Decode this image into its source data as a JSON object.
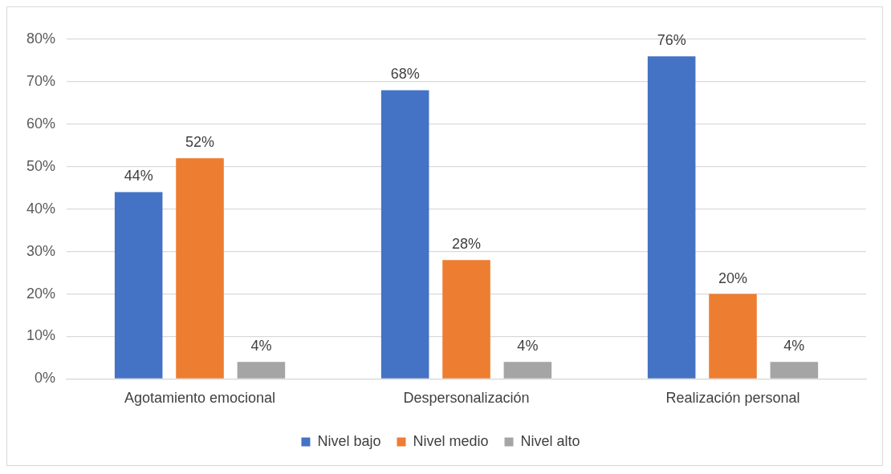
{
  "chart_data": {
    "type": "bar",
    "categories": [
      "Agotamiento emocional",
      "Despersonalización",
      "Realización personal"
    ],
    "series": [
      {
        "name": "Nivel bajo",
        "color": "#4472c4",
        "values": [
          44,
          68,
          76
        ],
        "value_labels": [
          "44%",
          "68%",
          "76%"
        ]
      },
      {
        "name": "Nivel medio",
        "color": "#ed7d31",
        "values": [
          52,
          28,
          20
        ],
        "value_labels": [
          "52%",
          "28%",
          "20%"
        ]
      },
      {
        "name": "Nivel alto",
        "color": "#a5a5a5",
        "values": [
          4,
          4,
          4
        ],
        "value_labels": [
          "4%",
          "4%",
          "4%"
        ]
      }
    ],
    "ylim": [
      0,
      80
    ],
    "yticks": [
      {
        "value": 0,
        "label": "0%"
      },
      {
        "value": 10,
        "label": "10%"
      },
      {
        "value": 20,
        "label": "20%"
      },
      {
        "value": 30,
        "label": "30%"
      },
      {
        "value": 40,
        "label": "40%"
      },
      {
        "value": 50,
        "label": "50%"
      },
      {
        "value": 60,
        "label": "60%"
      },
      {
        "value": 70,
        "label": "70%"
      },
      {
        "value": 80,
        "label": "80%"
      }
    ],
    "grid": "y",
    "legend": "bottom"
  }
}
